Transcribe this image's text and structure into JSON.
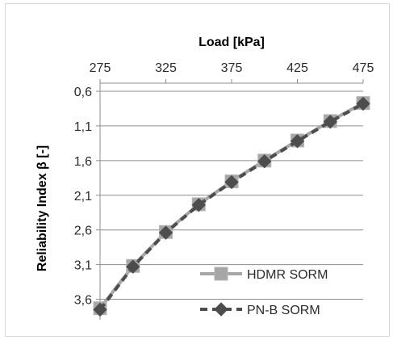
{
  "chart_data": {
    "type": "line",
    "xlabel": "Load [kPa]",
    "ylabel": "Reliability Index β [-]",
    "x_axis_position": "top",
    "y_axis_reversed": true,
    "xlim": [
      275,
      475
    ],
    "ylim": [
      0.6,
      3.85
    ],
    "x_ticks": [
      275,
      325,
      375,
      425,
      475
    ],
    "x_tick_labels": [
      "275",
      "325",
      "375",
      "425",
      "475"
    ],
    "y_ticks": [
      0.6,
      1.1,
      1.6,
      2.1,
      2.6,
      3.1,
      3.6
    ],
    "y_tick_labels": [
      "0,6",
      "1,1",
      "1,6",
      "2,1",
      "2,6",
      "3,1",
      "3,6"
    ],
    "grid": "horizontal",
    "legend": "bottom-right",
    "x": [
      275,
      300,
      325,
      350,
      375,
      400,
      425,
      450,
      475
    ],
    "series": [
      {
        "name": "HDMR SORM",
        "marker": "square",
        "line": "solid",
        "color": "#a6a6a6",
        "values": [
          3.73,
          3.12,
          2.63,
          2.23,
          1.9,
          1.6,
          1.31,
          1.03,
          0.77
        ]
      },
      {
        "name": "PN-B SORM",
        "marker": "diamond",
        "line": "dashed",
        "color": "#4d4d4d",
        "values": [
          3.75,
          3.13,
          2.64,
          2.24,
          1.91,
          1.61,
          1.32,
          1.04,
          0.78
        ]
      }
    ]
  }
}
